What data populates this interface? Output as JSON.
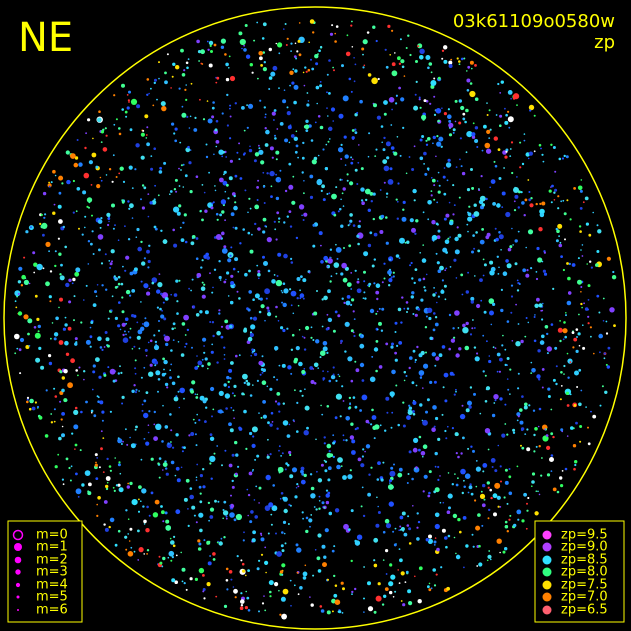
{
  "header": {
    "direction": "NE",
    "image_id": "03k61109o0580w",
    "color_mode": "zp"
  },
  "magnitude_legend": [
    "m=0",
    "m=1",
    "m=2",
    "m=3",
    "m=4",
    "m=5",
    "m=6"
  ],
  "zp_legend": [
    "zp=9.5",
    "zp=9.0",
    "zp=8.5",
    "zp=8.0",
    "zp=7.5",
    "zp=7.0",
    "zp=6.5"
  ]
}
